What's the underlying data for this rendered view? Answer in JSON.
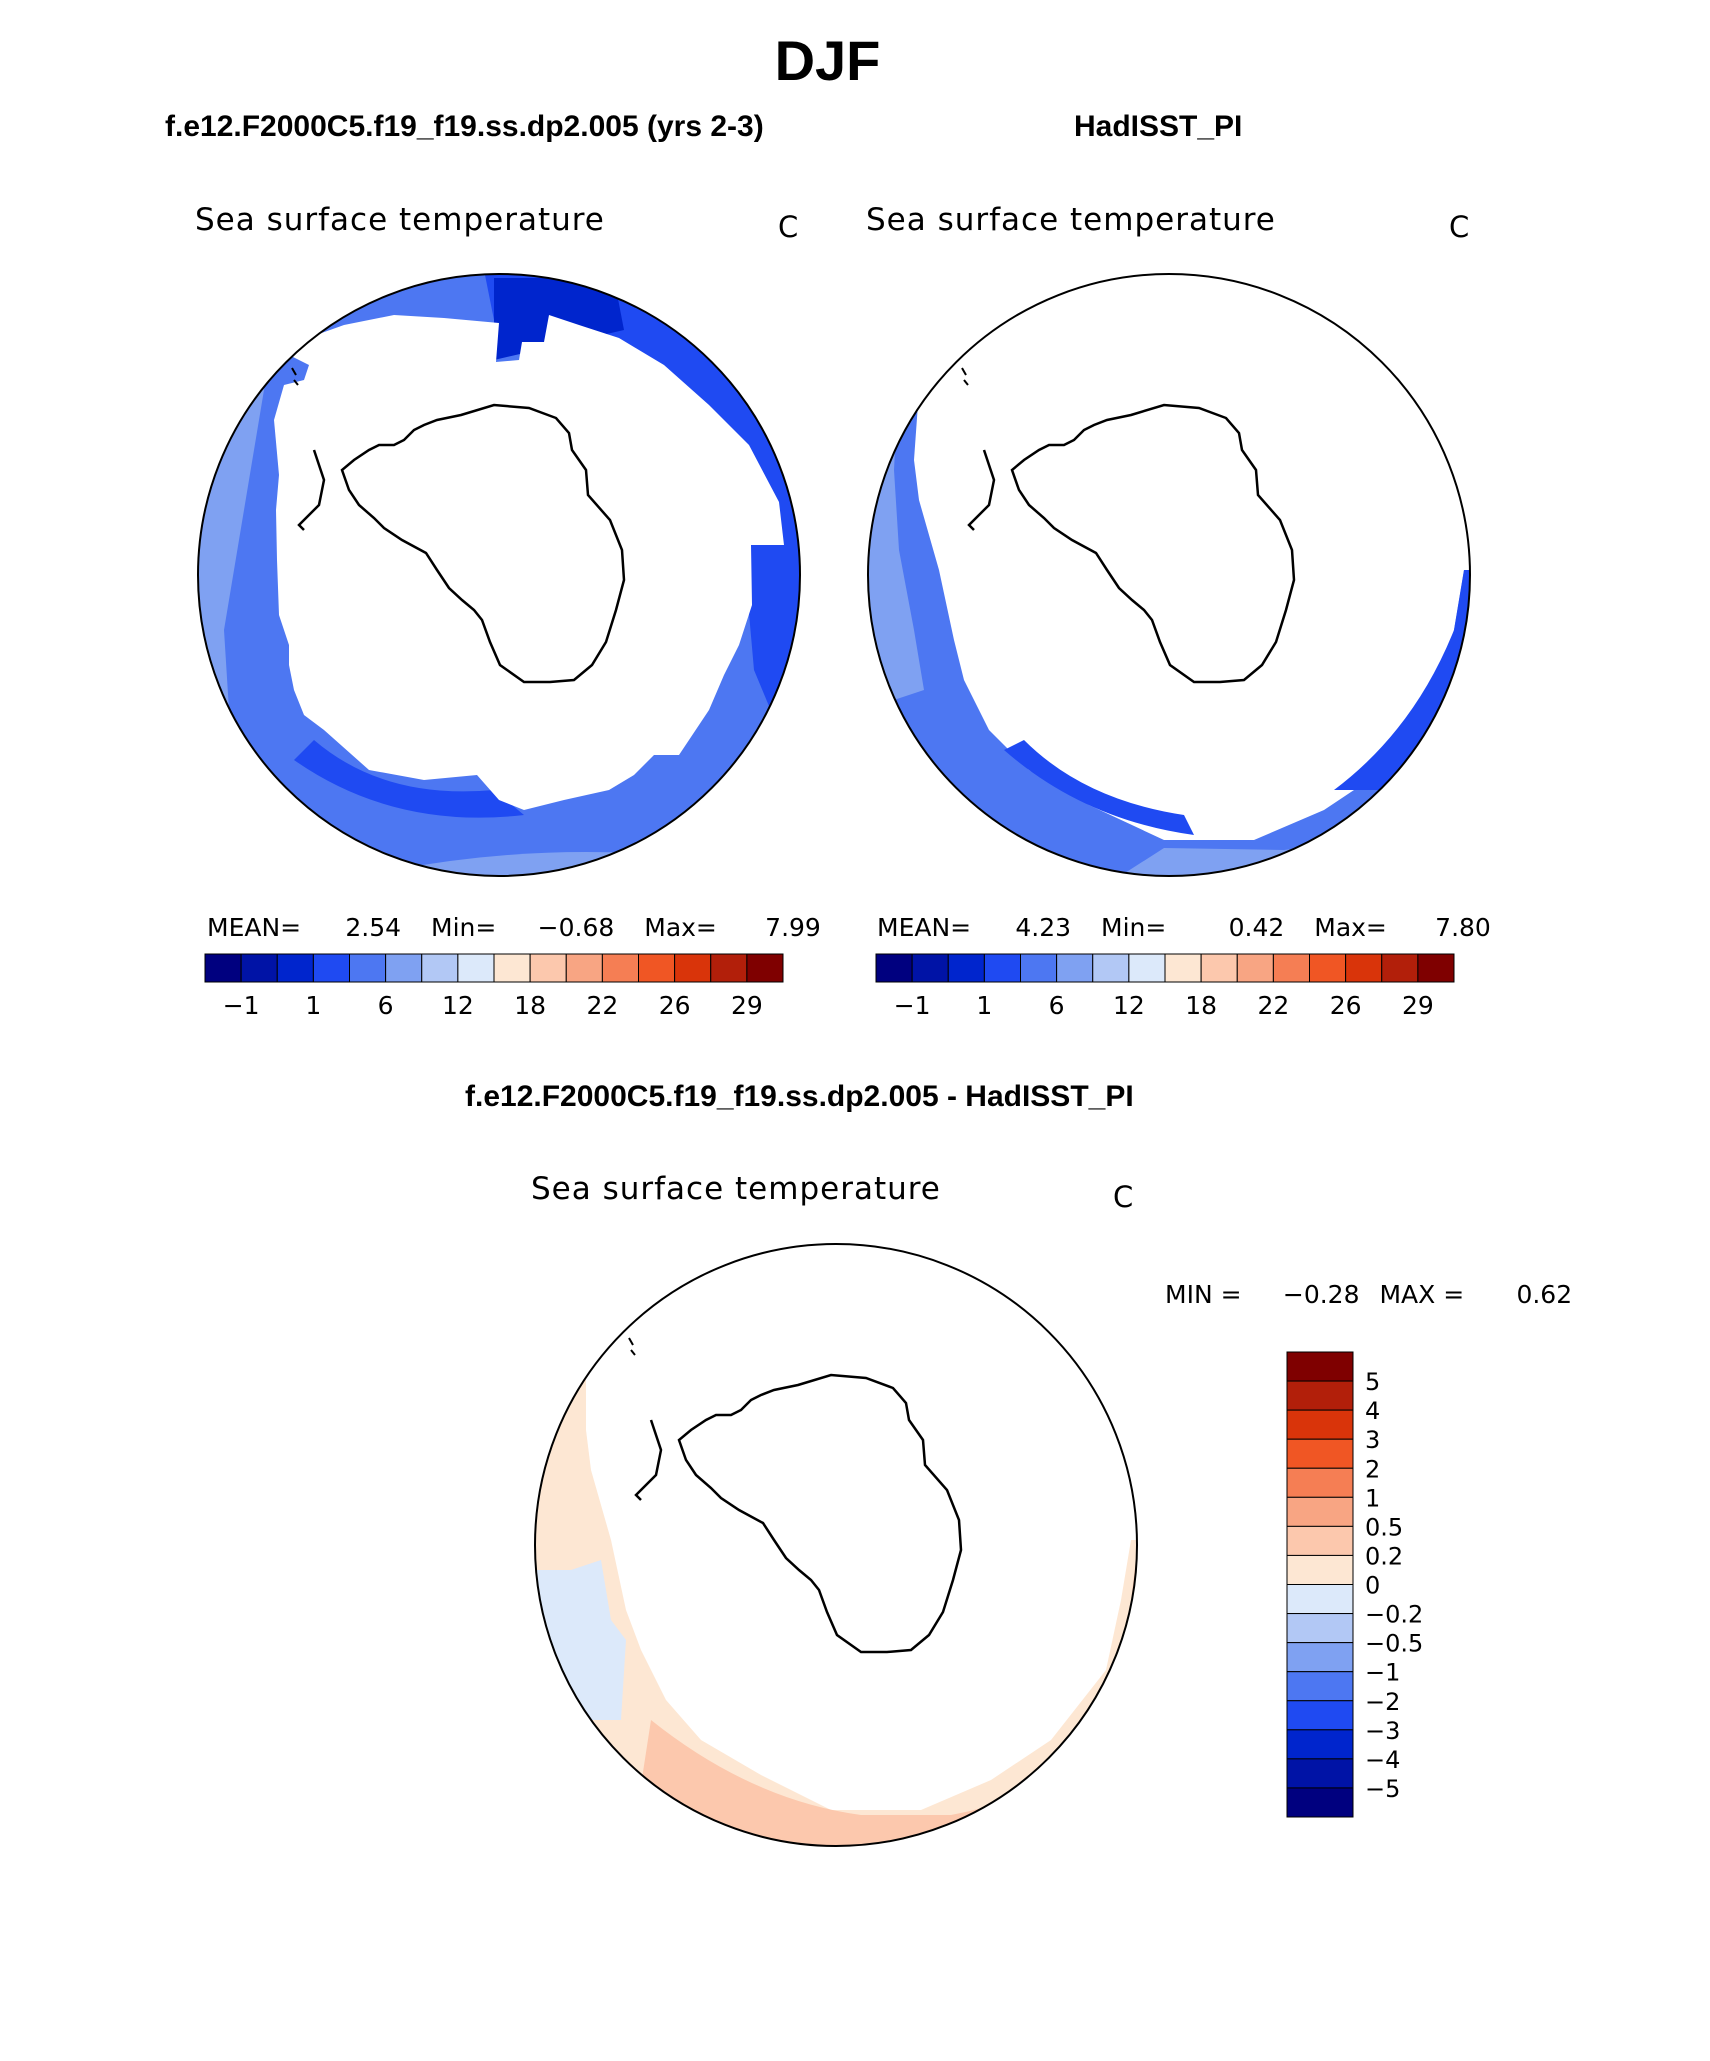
{
  "title": "DJF",
  "panels": {
    "model": {
      "case_title": "f.e12.F2000C5.f19_f19.ss.dp2.005 (yrs 2-3)",
      "variable": "Sea surface temperature",
      "units": "C",
      "stats": {
        "mean_label": "MEAN=",
        "mean": "2.54",
        "min_label": "Min=",
        "min": "−0.68",
        "max_label": "Max=",
        "max": "7.99"
      }
    },
    "obs": {
      "case_title": "HadISST_PI",
      "variable": "Sea surface temperature",
      "units": "C",
      "stats": {
        "mean_label": "MEAN=",
        "mean": "4.23",
        "min_label": "Min=",
        "min": "0.42",
        "max_label": "Max=",
        "max": "7.80"
      }
    },
    "diff": {
      "case_title": "f.e12.F2000C5.f19_f19.ss.dp2.005 - HadISST_PI",
      "variable": "Sea surface temperature",
      "units": "C",
      "stats": {
        "min_label": "MIN =",
        "min": "−0.28",
        "max_label": "MAX =",
        "max": "0.62"
      }
    }
  },
  "colorbars": {
    "abs": {
      "colors": [
        "#00007f",
        "#0013a6",
        "#0025cd",
        "#1f4af2",
        "#4d77f2",
        "#7fa1f2",
        "#b2c8f5",
        "#dce9fa",
        "#fde7d3",
        "#fcc8ad",
        "#f8a583",
        "#f57e54",
        "#f05624",
        "#d9340a",
        "#b21f0a",
        "#7f0000"
      ],
      "tick_labels": [
        "−1",
        "1",
        "6",
        "12",
        "18",
        "22",
        "26",
        "29"
      ]
    },
    "diff": {
      "colors": [
        "#7f0000",
        "#b21f0a",
        "#d9340a",
        "#f05624",
        "#f57e54",
        "#f8a583",
        "#fcc8ad",
        "#fde7d3",
        "#dce9fa",
        "#b2c8f5",
        "#7fa1f2",
        "#4d77f2",
        "#1f4af2",
        "#0025cd",
        "#0013a6",
        "#00007f"
      ],
      "tick_labels": [
        "5",
        "4",
        "3",
        "2",
        "1",
        "0.5",
        "0.2",
        "0",
        "−0.2",
        "−0.5",
        "−1",
        "−2",
        "−3",
        "−4",
        "−5"
      ]
    }
  },
  "chart_data": [
    {
      "type": "heatmap",
      "title": "Sea surface temperature",
      "units": "C",
      "projection": "south polar stereographic",
      "case": "f.e12.F2000C5.f19_f19.ss.dp2.005 (yrs 2-3)",
      "mean": 2.54,
      "min": -0.68,
      "max": 7.99,
      "contour_levels": [
        -1,
        1,
        6,
        12,
        18,
        22,
        26,
        29
      ]
    },
    {
      "type": "heatmap",
      "title": "Sea surface temperature",
      "units": "C",
      "projection": "south polar stereographic",
      "case": "HadISST_PI",
      "mean": 4.23,
      "min": 0.42,
      "max": 7.8,
      "contour_levels": [
        -1,
        1,
        6,
        12,
        18,
        22,
        26,
        29
      ]
    },
    {
      "type": "heatmap",
      "title": "Sea surface temperature",
      "units": "C",
      "projection": "south polar stereographic",
      "case": "f.e12.F2000C5.f19_f19.ss.dp2.005 - HadISST_PI",
      "min": -0.28,
      "max": 0.62,
      "contour_levels": [
        -5,
        -4,
        -3,
        -2,
        -1,
        -0.5,
        -0.2,
        0,
        0.2,
        0.5,
        1,
        2,
        3,
        4,
        5
      ]
    }
  ]
}
